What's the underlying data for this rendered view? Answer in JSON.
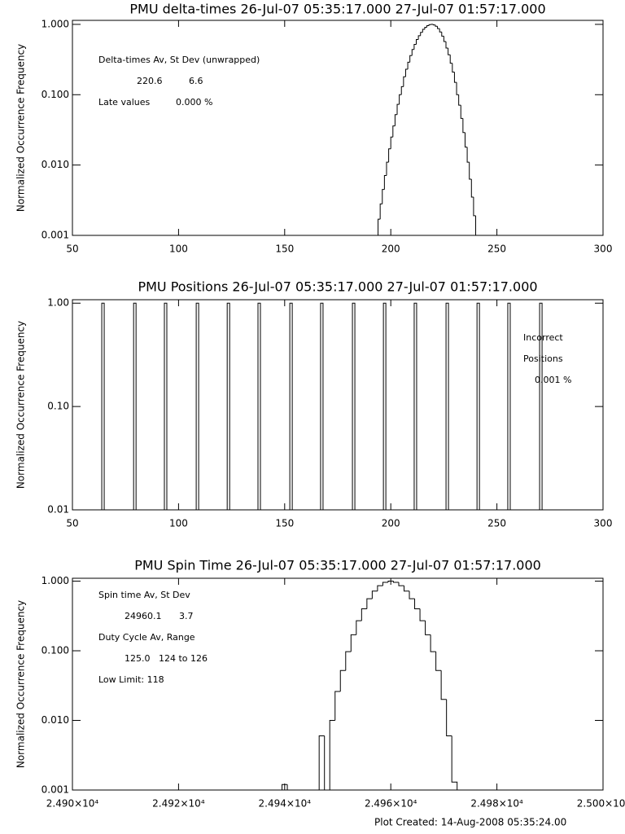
{
  "chart_data": [
    {
      "type": "histogram",
      "title": "PMU delta-times 26-Jul-07 05:35:17.000 27-Jul-07 01:57:17.000",
      "y_label": "Normalized Occurrence Frequency",
      "log_y": true,
      "xlim": [
        50,
        300
      ],
      "xticks": [
        50,
        100,
        150,
        200,
        250,
        300
      ],
      "ylim": [
        0.001,
        1.14
      ],
      "yticks": [
        {
          "value": 1,
          "label": "1.000"
        },
        {
          "value": 0.1,
          "label": "0.100"
        },
        {
          "value": 0.01,
          "label": "0.010"
        },
        {
          "value": 0.001,
          "label": "0.001"
        }
      ],
      "bins": [
        193,
        194,
        195,
        196,
        197,
        198,
        199,
        200,
        201,
        202,
        203,
        204,
        205,
        206,
        207,
        208,
        209,
        210,
        211,
        212,
        213,
        214,
        215,
        216,
        217,
        218,
        219,
        220,
        221,
        222,
        223,
        224,
        225,
        226,
        227,
        228,
        229,
        230,
        231,
        232,
        233,
        234,
        235,
        236,
        237,
        238,
        239,
        240,
        241
      ],
      "values": [
        0.001,
        0.0017,
        0.0028,
        0.0045,
        0.0071,
        0.011,
        0.017,
        0.025,
        0.036,
        0.052,
        0.073,
        0.1,
        0.13,
        0.18,
        0.23,
        0.29,
        0.36,
        0.44,
        0.52,
        0.61,
        0.69,
        0.77,
        0.85,
        0.91,
        0.96,
        0.99,
        1.0,
        0.98,
        0.94,
        0.87,
        0.78,
        0.68,
        0.57,
        0.46,
        0.37,
        0.28,
        0.21,
        0.15,
        0.1,
        0.071,
        0.046,
        0.029,
        0.018,
        0.011,
        0.0063,
        0.0035,
        0.0019,
        0.001
      ],
      "color": "#000000",
      "annotations": [
        "Delta-times Av, St Dev (unwrapped)",
        "220.6",
        "6.6",
        "Late values",
        "0.000 %"
      ]
    },
    {
      "type": "spikes",
      "title": "PMU Positions 26-Jul-07 05:35:17.000 27-Jul-07 01:57:17.000",
      "y_label": "Normalized Occurrence Frequency",
      "log_y": true,
      "xlim": [
        50,
        300
      ],
      "xticks": [
        50,
        100,
        150,
        200,
        250,
        300
      ],
      "ylim": [
        0.01,
        1.08
      ],
      "yticks": [
        {
          "value": 1,
          "label": "1.00"
        },
        {
          "value": 0.1,
          "label": "0.10"
        },
        {
          "value": 0.01,
          "label": "0.01"
        }
      ],
      "x": [
        64.4,
        79.4,
        93.9,
        108.9,
        123.5,
        138.0,
        153.0,
        167.5,
        182.5,
        197.1,
        211.6,
        226.6,
        241.2,
        255.7,
        270.7
      ],
      "values": [
        1,
        1,
        1,
        1,
        1,
        1,
        1,
        1,
        1,
        1,
        1,
        1,
        1,
        1,
        1
      ],
      "color": "#000000",
      "annotations": [
        "Incorrect",
        "Positions",
        "0.001 %"
      ]
    },
    {
      "type": "histogram",
      "title": "PMU Spin Time 26-Jul-07 05:35:17.000 27-Jul-07 01:57:17.000",
      "y_label": "Normalized Occurrence Frequency",
      "log_y": true,
      "xlim": [
        24900,
        25000
      ],
      "xticks": [
        {
          "value": 24900,
          "label": "2.490×10⁴"
        },
        {
          "value": 24920,
          "label": "2.492×10⁴"
        },
        {
          "value": 24940,
          "label": "2.494×10⁴"
        },
        {
          "value": 24960,
          "label": "2.496×10⁴"
        },
        {
          "value": 24980,
          "label": "2.498×10⁴"
        },
        {
          "value": 25000,
          "label": "2.500×10⁴"
        }
      ],
      "ylim": [
        0.001,
        1.1
      ],
      "yticks": [
        {
          "value": 1,
          "label": "1.000"
        },
        {
          "value": 0.1,
          "label": "0.100"
        },
        {
          "value": 0.01,
          "label": "0.010"
        },
        {
          "value": 0.001,
          "label": "0.001"
        }
      ],
      "bins": [
        24939.5,
        24940.5,
        24941.5,
        24942.5,
        24943.5,
        24944.5,
        24945.5,
        24946.5,
        24947.5,
        24948.5,
        24949.5,
        24950.5,
        24951.5,
        24952.5,
        24953.5,
        24954.5,
        24955.5,
        24956.5,
        24957.5,
        24958.5,
        24959.5,
        24960.5,
        24961.5,
        24962.5,
        24963.5,
        24964.5,
        24965.5,
        24966.5,
        24967.5,
        24968.5,
        24969.5,
        24970.5,
        24971.5,
        24972.5
      ],
      "values": [
        0.0012,
        0,
        0,
        0,
        0,
        0,
        0,
        0.006,
        0,
        0.01,
        0.026,
        0.052,
        0.097,
        0.17,
        0.27,
        0.4,
        0.56,
        0.72,
        0.86,
        0.96,
        1.0,
        0.96,
        0.86,
        0.72,
        0.56,
        0.4,
        0.27,
        0.17,
        0.097,
        0.052,
        0.02,
        0.006,
        0.0013
      ],
      "color": "#000000",
      "annotations": [
        "Spin time Av, St Dev",
        "24960.1",
        "3.7",
        "Duty Cycle Av, Range",
        "125.0",
        "124 to 126",
        "Low Limit: 118"
      ]
    }
  ],
  "footer": "Plot Created: 14-Aug-2008 05:35:24.00"
}
